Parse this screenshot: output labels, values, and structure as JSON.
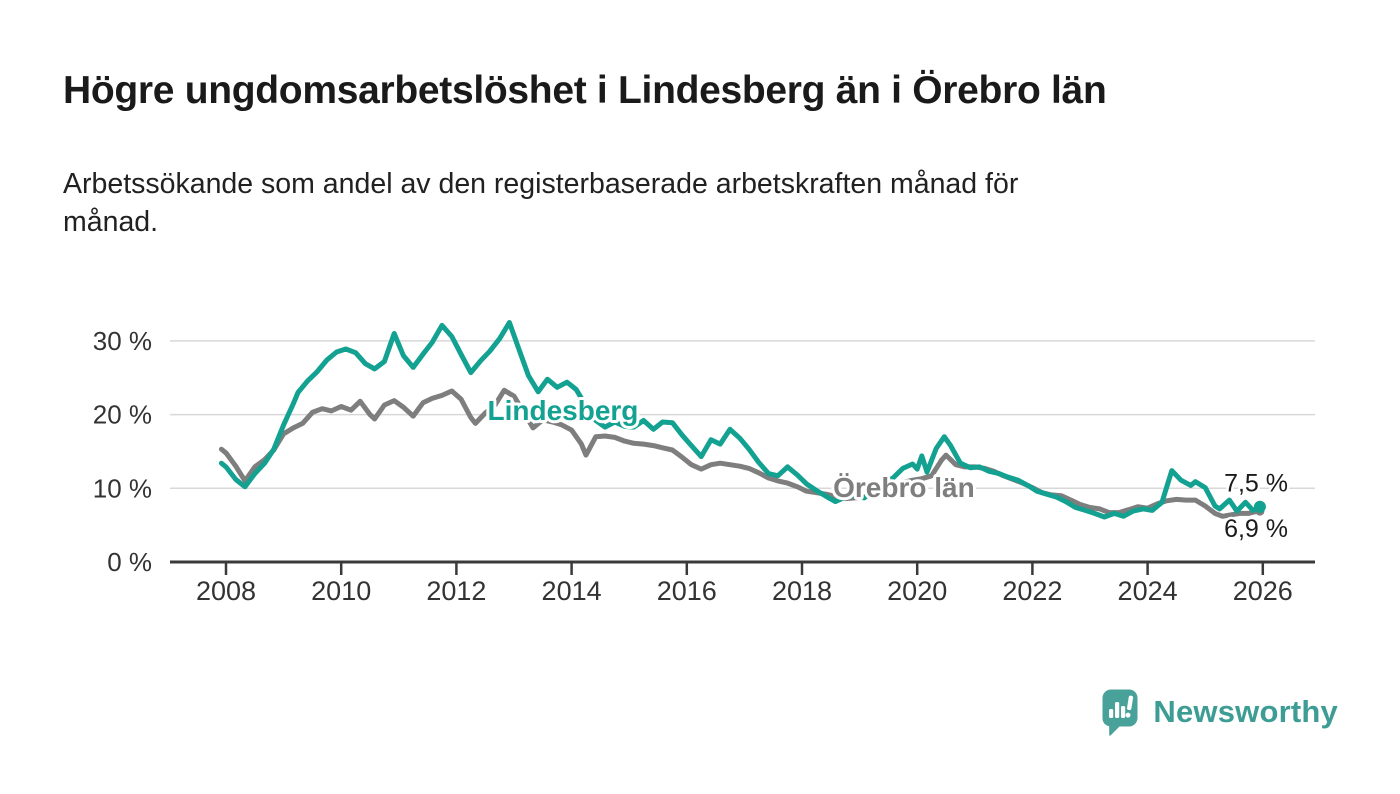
{
  "title": "Högre ungdomsarbetslöshet i Lindesberg än i Örebro län",
  "subtitle": "Arbetssökande som andel av den registerbaserade arbetskraften månad för månad.",
  "brand": {
    "name": "Newsworthy",
    "icon": "newsworthy-speech-bubble-bar-chart-icon",
    "icon_color": "#48a29a",
    "text_color": "#3d9c94"
  },
  "colors": {
    "background": "#ffffff",
    "title_text": "#1a1a1a",
    "subtitle_text": "#212121",
    "axis_line": "#3a3a3a",
    "axis_text": "#333333",
    "gridline": "#d8d8d8",
    "value_label_text": "#1a1a1a",
    "halo": "#ffffff",
    "lindesberg_teal": "#13a191",
    "orebro_gray": "#7e7e7e"
  },
  "chart_data": {
    "type": "line",
    "title": "Högre ungdomsarbetslöshet i Lindesberg än i Örebro län",
    "subtitle": "Arbetssökande som andel av den registerbaserade arbetskraften månad för månad.",
    "xlabel": "",
    "ylabel": "",
    "unit": "%",
    "grid": "horizontal",
    "legend_position": "inline-labels",
    "xlim": [
      2007.05,
      2026.9
    ],
    "ylim": [
      0,
      34
    ],
    "x_ticks": [
      2008,
      2010,
      2012,
      2014,
      2016,
      2018,
      2020,
      2022,
      2024,
      2026
    ],
    "x_tick_labels": [
      "2008",
      "2010",
      "2012",
      "2014",
      "2016",
      "2018",
      "2020",
      "2022",
      "2024",
      "2026"
    ],
    "y_ticks": [
      0,
      10,
      20,
      30
    ],
    "y_tick_labels": [
      "0 %",
      "10 %",
      "20 %",
      "30 %"
    ],
    "series": [
      {
        "name": "Örebro län",
        "color": "#7e7e7e",
        "end_value_label": "6,9 %",
        "inline_label": {
          "text": "Örebro län",
          "x": 2018.54,
          "value": 10.2
        },
        "x": [
          2007.92,
          2008.0,
          2008.17,
          2008.33,
          2008.5,
          2008.67,
          2008.83,
          2009.0,
          2009.17,
          2009.33,
          2009.5,
          2009.67,
          2009.83,
          2010.0,
          2010.17,
          2010.33,
          2010.5,
          2010.58,
          2010.75,
          2010.92,
          2011.08,
          2011.25,
          2011.42,
          2011.58,
          2011.75,
          2011.92,
          2012.08,
          2012.25,
          2012.33,
          2012.5,
          2012.67,
          2012.83,
          2013.0,
          2013.17,
          2013.33,
          2013.5,
          2013.67,
          2013.83,
          2014.0,
          2014.17,
          2014.25,
          2014.42,
          2014.58,
          2014.75,
          2014.92,
          2015.08,
          2015.25,
          2015.42,
          2015.58,
          2015.75,
          2015.92,
          2016.08,
          2016.25,
          2016.42,
          2016.58,
          2016.75,
          2016.92,
          2017.08,
          2017.25,
          2017.42,
          2017.58,
          2017.75,
          2017.92,
          2018.08,
          2018.25,
          2018.42,
          2018.58,
          2018.75,
          2018.92,
          2019.08,
          2019.25,
          2019.42,
          2019.58,
          2019.75,
          2019.92,
          2020.08,
          2020.25,
          2020.42,
          2020.5,
          2020.67,
          2020.83,
          2021.0,
          2021.17,
          2021.33,
          2021.5,
          2021.67,
          2021.83,
          2022.0,
          2022.17,
          2022.33,
          2022.5,
          2022.67,
          2022.83,
          2023.0,
          2023.17,
          2023.33,
          2023.5,
          2023.67,
          2023.83,
          2024.0,
          2024.17,
          2024.33,
          2024.5,
          2024.67,
          2024.83,
          2025.0,
          2025.17,
          2025.3,
          2025.45,
          2025.6,
          2025.75,
          2025.85,
          2025.95
        ],
        "values": [
          15.3,
          14.8,
          13.0,
          11.0,
          12.9,
          13.9,
          15.2,
          17.4,
          18.2,
          18.8,
          20.3,
          20.8,
          20.5,
          21.1,
          20.6,
          21.8,
          20.0,
          19.4,
          21.3,
          21.9,
          21.0,
          19.8,
          21.6,
          22.2,
          22.6,
          23.2,
          22.1,
          19.6,
          18.8,
          20.2,
          21.3,
          23.3,
          22.5,
          20.3,
          18.2,
          19.3,
          19.0,
          18.6,
          17.9,
          16.0,
          14.5,
          17.0,
          17.1,
          16.9,
          16.4,
          16.1,
          16.0,
          15.8,
          15.5,
          15.2,
          14.2,
          13.2,
          12.6,
          13.2,
          13.4,
          13.2,
          13.0,
          12.7,
          12.1,
          11.4,
          11.0,
          10.7,
          10.2,
          9.6,
          9.4,
          9.2,
          8.9,
          8.6,
          8.7,
          8.8,
          9.3,
          9.8,
          10.2,
          10.8,
          11.1,
          11.3,
          11.7,
          13.8,
          14.5,
          13.2,
          12.9,
          12.9,
          12.7,
          12.3,
          11.7,
          11.2,
          10.7,
          10.1,
          9.4,
          9.1,
          9.0,
          8.4,
          7.8,
          7.4,
          7.2,
          6.7,
          6.7,
          7.1,
          7.5,
          7.3,
          7.9,
          8.3,
          8.5,
          8.4,
          8.4,
          7.6,
          6.6,
          6.2,
          6.4,
          6.6,
          6.6,
          6.8,
          6.9
        ]
      },
      {
        "name": "Lindesberg",
        "color": "#13a191",
        "end_value_label": "7,5 %",
        "inline_label": {
          "text": "Lindesberg",
          "x": 2012.54,
          "value": 20.6
        },
        "x": [
          2007.92,
          2008.0,
          2008.17,
          2008.33,
          2008.5,
          2008.67,
          2008.83,
          2009.0,
          2009.17,
          2009.25,
          2009.42,
          2009.58,
          2009.75,
          2009.92,
          2010.08,
          2010.25,
          2010.42,
          2010.58,
          2010.75,
          2010.92,
          2011.08,
          2011.25,
          2011.42,
          2011.58,
          2011.75,
          2011.92,
          2012.08,
          2012.25,
          2012.42,
          2012.58,
          2012.75,
          2012.92,
          2013.08,
          2013.25,
          2013.42,
          2013.58,
          2013.75,
          2013.92,
          2014.08,
          2014.25,
          2014.42,
          2014.58,
          2014.75,
          2014.92,
          2015.08,
          2015.25,
          2015.42,
          2015.58,
          2015.75,
          2015.92,
          2016.08,
          2016.25,
          2016.42,
          2016.58,
          2016.75,
          2016.92,
          2017.08,
          2017.25,
          2017.42,
          2017.58,
          2017.75,
          2017.92,
          2018.08,
          2018.25,
          2018.42,
          2018.58,
          2018.75,
          2018.92,
          2019.08,
          2019.25,
          2019.42,
          2019.58,
          2019.75,
          2019.92,
          2020.0,
          2020.08,
          2020.17,
          2020.33,
          2020.47,
          2020.58,
          2020.75,
          2020.92,
          2021.08,
          2021.25,
          2021.42,
          2021.58,
          2021.75,
          2021.92,
          2022.08,
          2022.25,
          2022.42,
          2022.58,
          2022.75,
          2022.92,
          2023.08,
          2023.25,
          2023.42,
          2023.58,
          2023.75,
          2023.92,
          2024.08,
          2024.25,
          2024.42,
          2024.58,
          2024.75,
          2024.83,
          2025.0,
          2025.17,
          2025.25,
          2025.42,
          2025.55,
          2025.7,
          2025.83,
          2025.95
        ],
        "values": [
          13.4,
          12.9,
          11.2,
          10.2,
          12.0,
          13.4,
          15.3,
          18.6,
          21.5,
          23.0,
          24.6,
          25.8,
          27.4,
          28.5,
          28.9,
          28.4,
          26.9,
          26.2,
          27.2,
          31.0,
          28.0,
          26.4,
          28.2,
          29.8,
          32.1,
          30.6,
          28.2,
          25.7,
          27.3,
          28.6,
          30.3,
          32.5,
          29.0,
          25.3,
          23.1,
          24.8,
          23.7,
          24.4,
          23.4,
          21.2,
          19.2,
          18.3,
          19.0,
          18.4,
          18.3,
          19.2,
          18.0,
          19.0,
          18.9,
          17.2,
          15.8,
          14.3,
          16.6,
          16.0,
          18.0,
          16.8,
          15.3,
          13.5,
          12.0,
          11.7,
          12.9,
          11.8,
          10.6,
          9.7,
          8.9,
          8.2,
          8.8,
          9.1,
          8.7,
          9.9,
          10.8,
          11.4,
          12.7,
          13.3,
          12.6,
          14.4,
          12.2,
          15.4,
          17.0,
          15.8,
          13.4,
          12.8,
          12.9,
          12.3,
          12.0,
          11.5,
          11.1,
          10.4,
          9.6,
          9.2,
          8.8,
          8.2,
          7.4,
          7.0,
          6.6,
          6.1,
          6.6,
          6.2,
          6.9,
          7.2,
          7.0,
          8.1,
          12.4,
          11.1,
          10.4,
          10.9,
          10.1,
          7.6,
          7.2,
          8.4,
          6.9,
          8.1,
          7.0,
          7.5
        ]
      }
    ]
  }
}
